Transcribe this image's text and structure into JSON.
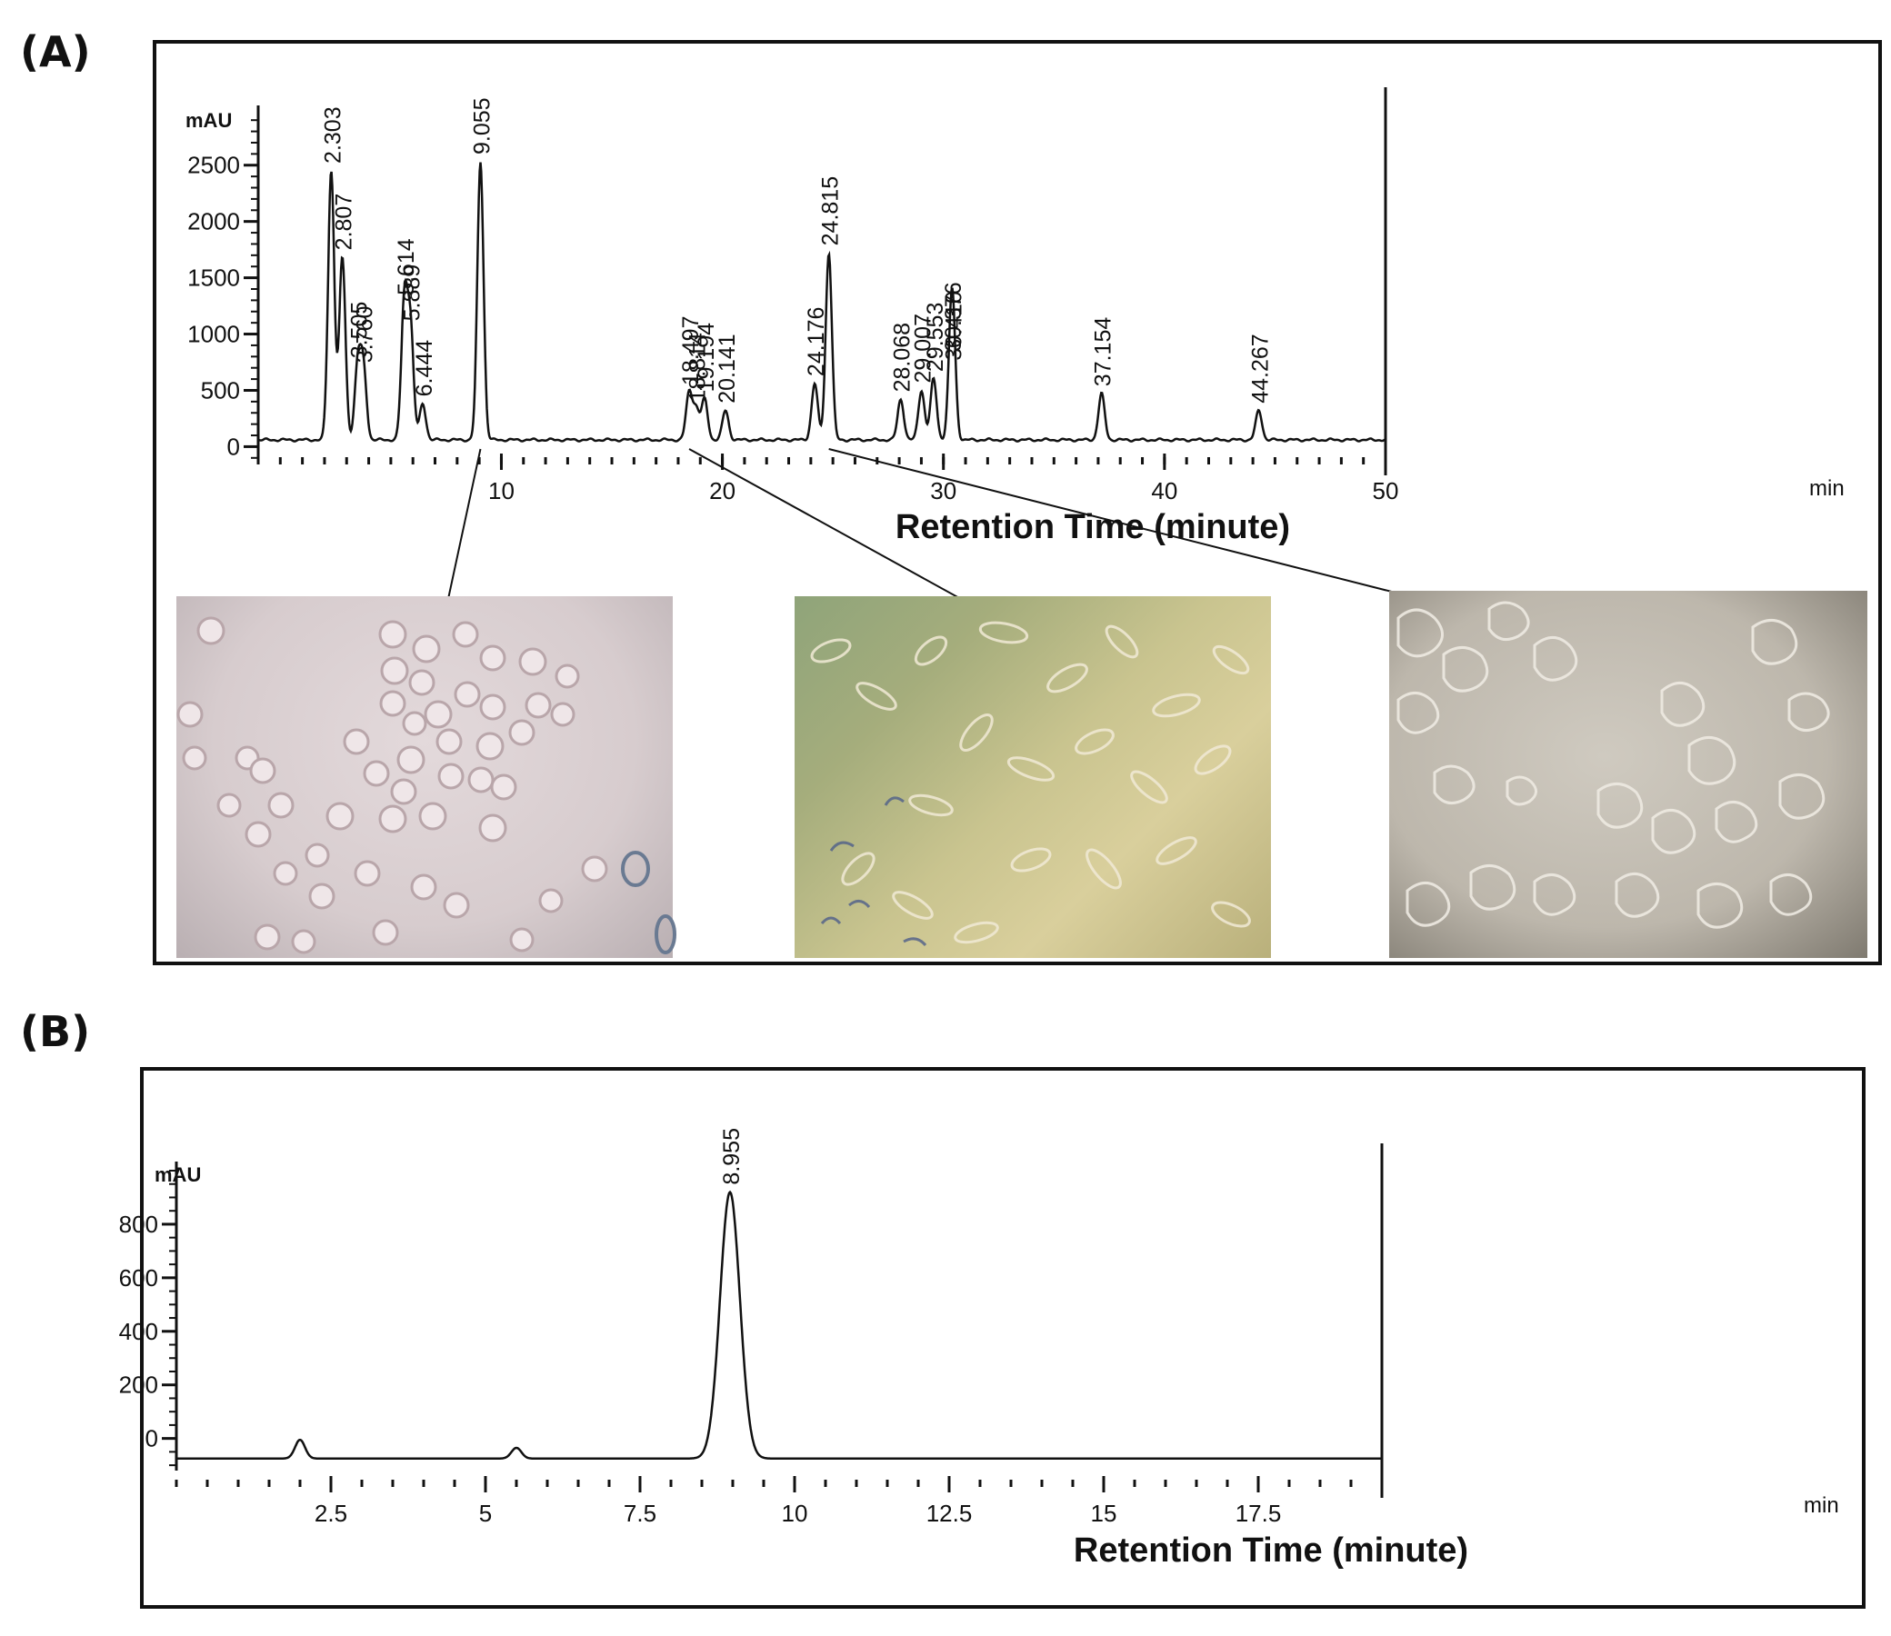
{
  "panels": {
    "a": {
      "label": "(A)",
      "y_unit": "mAU",
      "x_unit": "min",
      "xlabel": "Retention Time (minute)",
      "x_tick_labels": [
        "10",
        "20",
        "30",
        "40",
        "50"
      ],
      "y_tick_labels": [
        "0",
        "500",
        "1000",
        "1500",
        "2000",
        "2500"
      ],
      "peak_labels": [
        "2.303",
        "2.807",
        "3.505",
        "3.760",
        "5.614",
        "5.889",
        "6.444",
        "9.055",
        "18.497",
        "18.814",
        "19.194",
        "20.141",
        "24.176",
        "24.815",
        "28.068",
        "29.007",
        "29.553",
        "30.376",
        "30.410",
        "37.154",
        "44.267"
      ],
      "micrographs": [
        "round-cells",
        "spindle-cells-green-field",
        "clustered-cells-grey-field"
      ]
    },
    "b": {
      "label": "(B)",
      "y_unit": "mAU",
      "x_unit": "min",
      "xlabel": "Retention Time (minute)",
      "x_tick_labels": [
        "2.5",
        "5",
        "7.5",
        "10",
        "12.5",
        "15",
        "17.5"
      ],
      "y_tick_labels": [
        "0",
        "200",
        "400",
        "600",
        "800"
      ],
      "peak_labels": [
        "8.955"
      ]
    }
  },
  "chart_data": [
    {
      "type": "line",
      "panel": "A",
      "title": "",
      "xlabel": "Retention Time (minute)",
      "ylabel": "mAU",
      "x_unit": "min",
      "xlim": [
        -1,
        50
      ],
      "ylim": [
        -150,
        2950
      ],
      "x_ticks": [
        10,
        20,
        30,
        40,
        50
      ],
      "y_ticks": [
        0,
        500,
        1000,
        1500,
        2000,
        2500
      ],
      "grid": false,
      "baseline": 60,
      "peaks": [
        {
          "x": 2.303,
          "y": 2450,
          "label": "2.303"
        },
        {
          "x": 2.807,
          "y": 1680,
          "label": "2.807"
        },
        {
          "x": 3.505,
          "y": 720,
          "label": "3.505"
        },
        {
          "x": 3.76,
          "y": 680,
          "label": "3.760"
        },
        {
          "x": 5.614,
          "y": 1280,
          "label": "5.614"
        },
        {
          "x": 5.889,
          "y": 1050,
          "label": "5.889"
        },
        {
          "x": 6.444,
          "y": 380,
          "label": "6.444"
        },
        {
          "x": 9.055,
          "y": 2530,
          "label": "9.055"
        },
        {
          "x": 18.497,
          "y": 480,
          "label": "18.497"
        },
        {
          "x": 18.814,
          "y": 330,
          "label": "18.814"
        },
        {
          "x": 19.194,
          "y": 420,
          "label": "19.194"
        },
        {
          "x": 20.141,
          "y": 320,
          "label": "20.141"
        },
        {
          "x": 24.176,
          "y": 560,
          "label": "24.176"
        },
        {
          "x": 24.815,
          "y": 1720,
          "label": "24.815"
        },
        {
          "x": 28.068,
          "y": 420,
          "label": "28.068"
        },
        {
          "x": 29.007,
          "y": 500,
          "label": "29.007"
        },
        {
          "x": 29.553,
          "y": 600,
          "label": "29.553"
        },
        {
          "x": 30.376,
          "y": 780,
          "label": "30.376"
        },
        {
          "x": 30.41,
          "y": 700,
          "label": "30.410"
        },
        {
          "x": 37.154,
          "y": 470,
          "label": "37.154"
        },
        {
          "x": 44.267,
          "y": 320,
          "label": "44.267"
        }
      ],
      "annotations": [
        {
          "from_peak": "9.055",
          "to": "micrograph 1"
        },
        {
          "from_peak": "18.497",
          "to": "micrograph 2"
        },
        {
          "from_peak": "24.815",
          "to": "micrograph 3"
        }
      ]
    },
    {
      "type": "line",
      "panel": "B",
      "title": "",
      "xlabel": "Retention Time (minute)",
      "ylabel": "mAU",
      "x_unit": "min",
      "xlim": [
        0,
        19.5
      ],
      "ylim": [
        -120,
        1000
      ],
      "x_ticks": [
        2.5,
        5,
        7.5,
        10,
        12.5,
        15,
        17.5
      ],
      "y_ticks": [
        0,
        200,
        400,
        600,
        800
      ],
      "grid": false,
      "baseline": -75,
      "peaks": [
        {
          "x": 2.0,
          "y": -5
        },
        {
          "x": 5.5,
          "y": -35
        },
        {
          "x": 8.955,
          "y": 920,
          "label": "8.955"
        }
      ]
    }
  ]
}
